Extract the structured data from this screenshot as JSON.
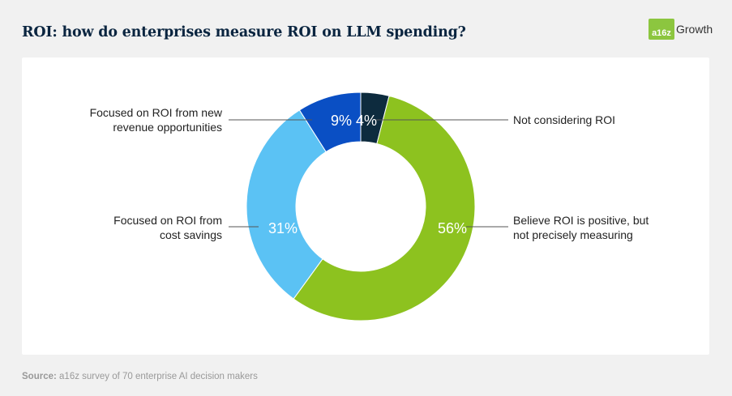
{
  "header": {
    "title": "ROI: how do enterprises measure ROI on LLM spending?",
    "logo_badge": "a16z",
    "logo_text": "Growth"
  },
  "footer": {
    "source_label": "Source:",
    "source_text": "a16z survey of 70 enterprise AI decision makers"
  },
  "chart_data": {
    "type": "pie",
    "donut": true,
    "categories": [
      "Not considering ROI",
      "Believe ROI is positive, but not precisely measuring",
      "Focused on ROI from cost savings",
      "Focused on ROI from new revenue opportunities"
    ],
    "values": [
      4,
      56,
      31,
      9
    ],
    "value_labels": [
      "4%",
      "56%",
      "31%",
      "9%"
    ],
    "label_lines": [
      [
        "Not considering ROI"
      ],
      [
        "Believe ROI is positive, but",
        "not precisely measuring"
      ],
      [
        "Focused on ROI from",
        "cost savings"
      ],
      [
        "Focused on ROI from new",
        "revenue opportunities"
      ]
    ],
    "colors": [
      "#0d2b3e",
      "#8dc21f",
      "#5bc2f4",
      "#0a4fc4"
    ],
    "title": "ROI: how do enterprises measure ROI on LLM spending?",
    "legend": "labels with leader lines"
  }
}
